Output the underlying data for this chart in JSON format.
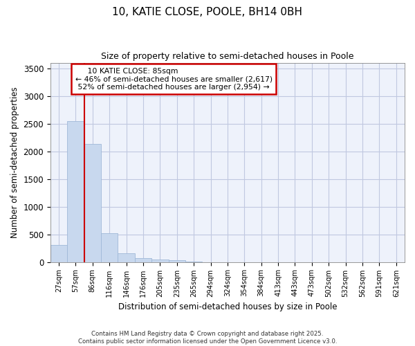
{
  "title": "10, KATIE CLOSE, POOLE, BH14 0BH",
  "subtitle": "Size of property relative to semi-detached houses in Poole",
  "xlabel": "Distribution of semi-detached houses by size in Poole",
  "ylabel": "Number of semi-detached properties",
  "bar_color": "#c8d8ee",
  "bar_edge_color": "#a0b8d8",
  "background_color": "#ffffff",
  "plot_bg_color": "#eef2fb",
  "grid_color": "#c0c8e0",
  "categories": [
    "27sqm",
    "57sqm",
    "86sqm",
    "116sqm",
    "146sqm",
    "176sqm",
    "205sqm",
    "235sqm",
    "265sqm",
    "294sqm",
    "324sqm",
    "354sqm",
    "384sqm",
    "413sqm",
    "443sqm",
    "473sqm",
    "502sqm",
    "532sqm",
    "562sqm",
    "591sqm",
    "621sqm"
  ],
  "values": [
    310,
    2540,
    2130,
    525,
    155,
    72,
    42,
    28,
    5,
    0,
    0,
    0,
    0,
    0,
    0,
    0,
    0,
    0,
    0,
    0,
    0
  ],
  "ylim": [
    0,
    3600
  ],
  "yticks": [
    0,
    500,
    1000,
    1500,
    2000,
    2500,
    3000,
    3500
  ],
  "vline_x": 1.5,
  "vline_color": "#cc0000",
  "annotation_box_color": "#cc0000",
  "footer_line1": "Contains HM Land Registry data © Crown copyright and database right 2025.",
  "footer_line2": "Contains public sector information licensed under the Open Government Licence v3.0."
}
